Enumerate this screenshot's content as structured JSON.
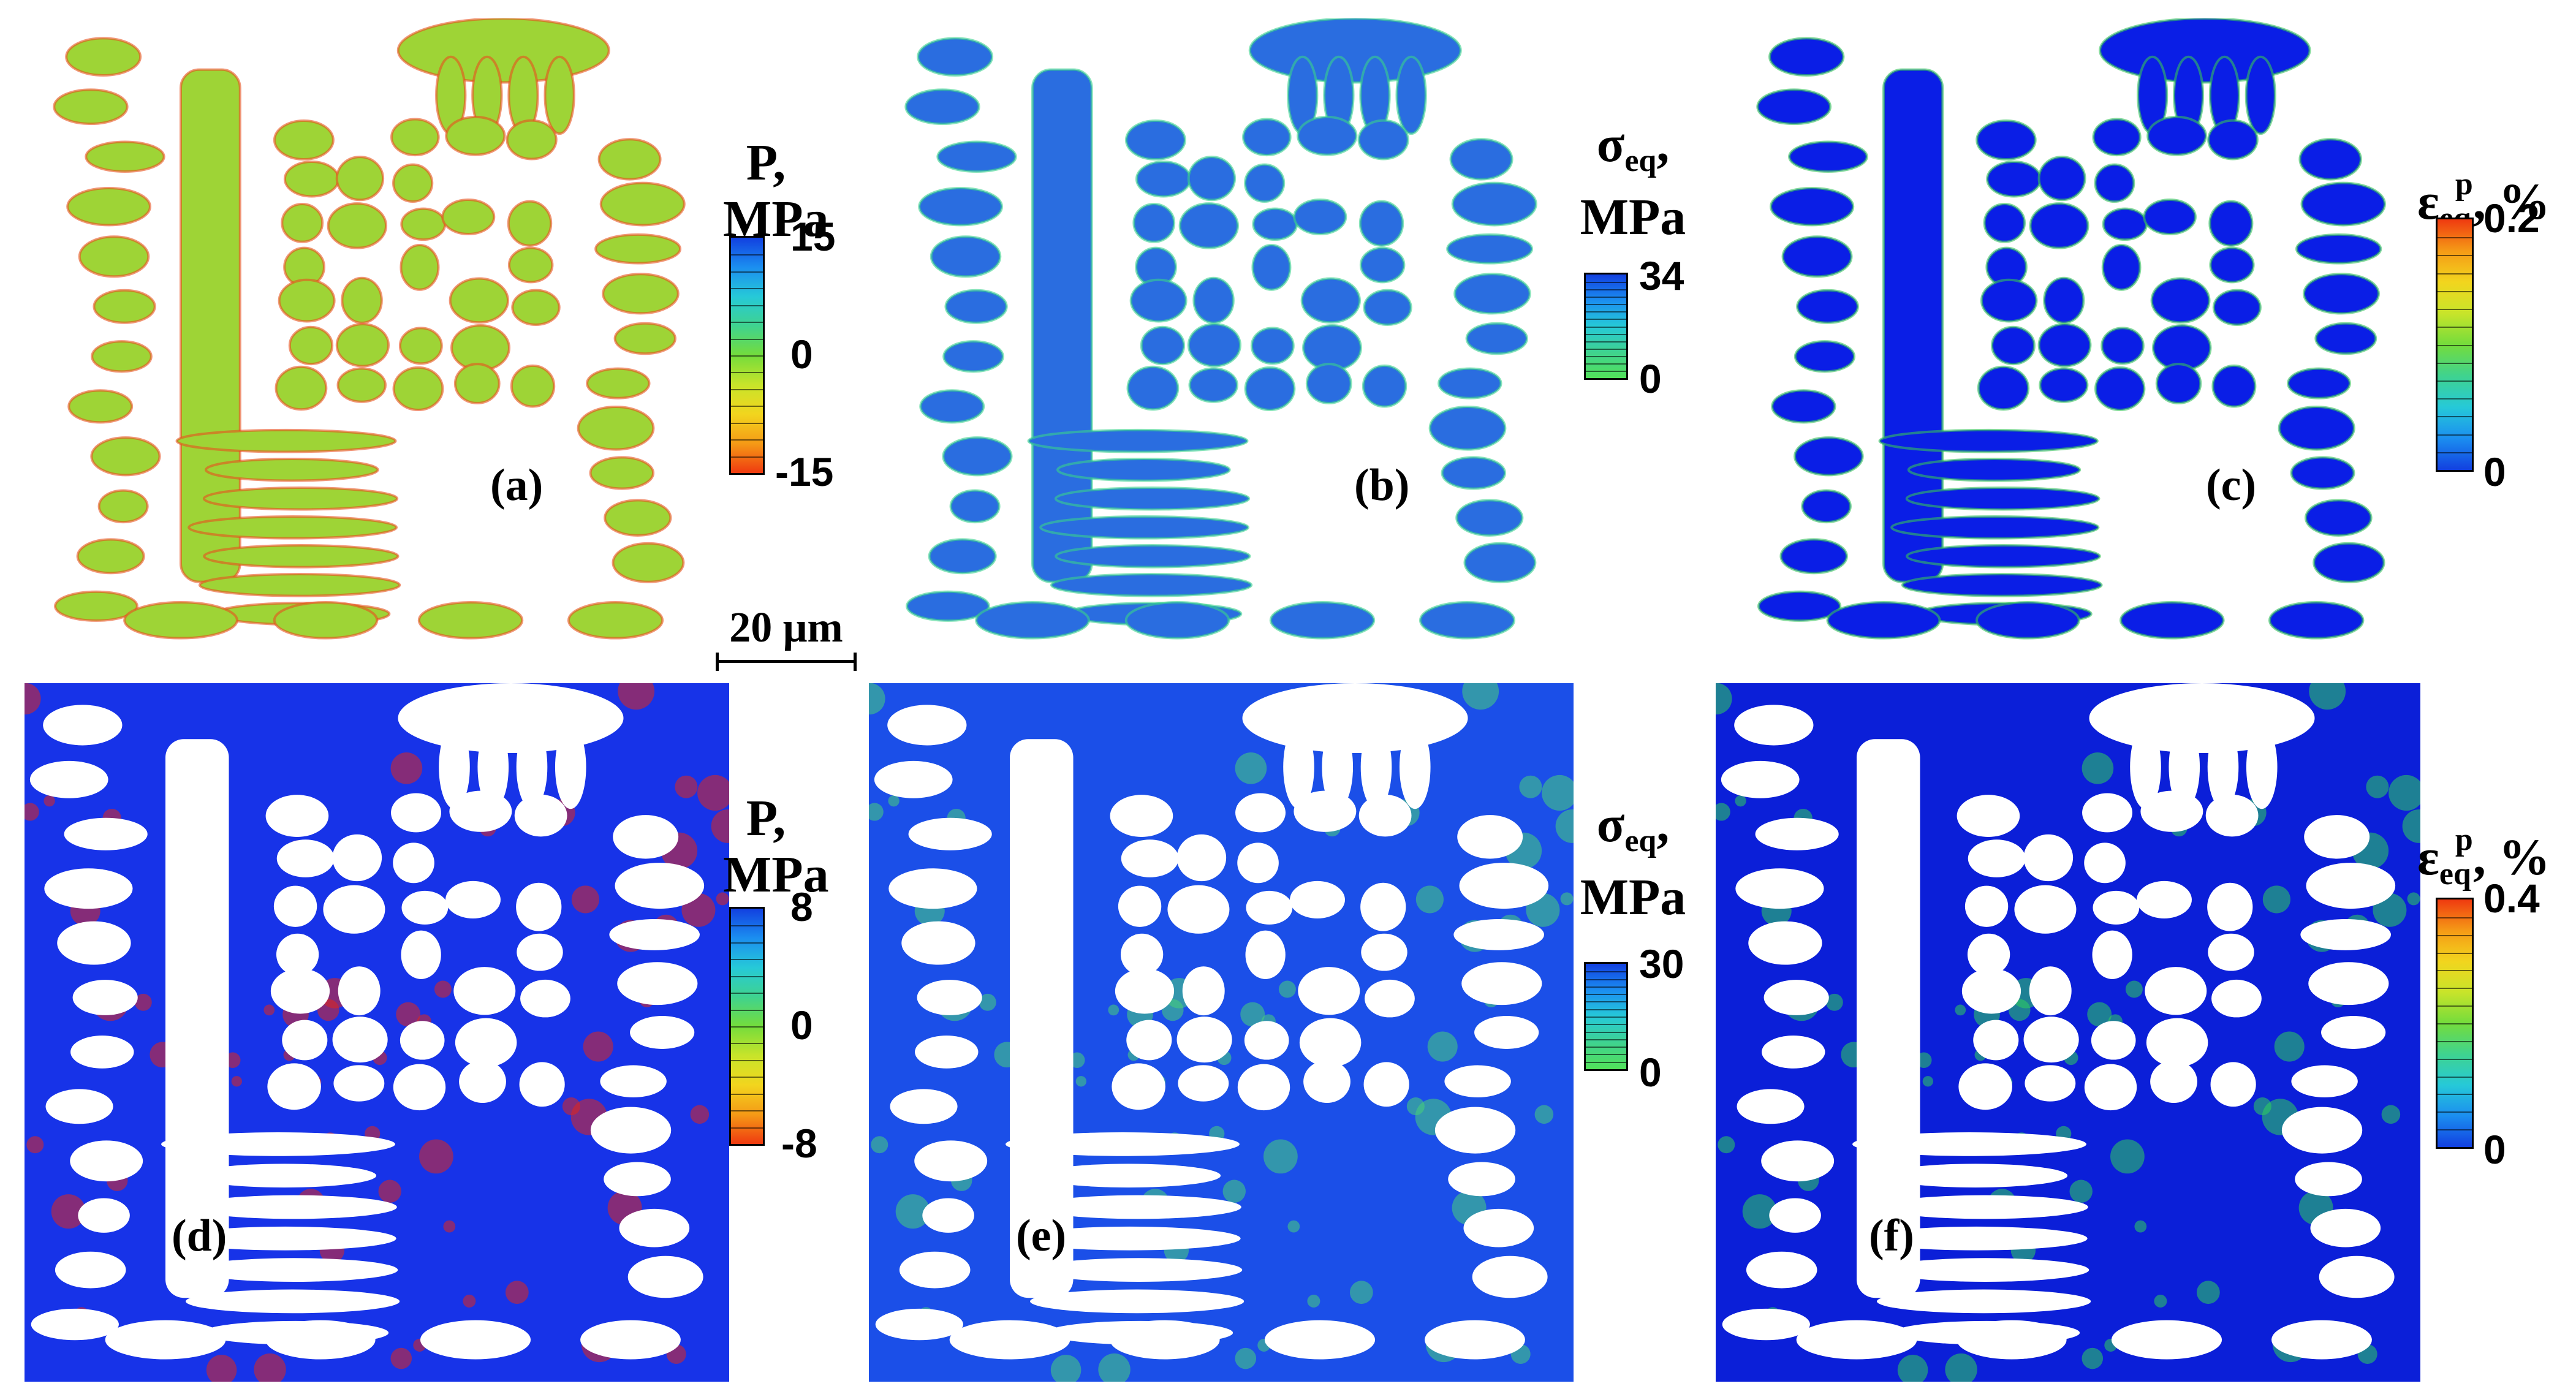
{
  "panels": [
    {
      "id": "a",
      "label": "(a)",
      "background": "#ffffff",
      "grain_fill": "#9ed436",
      "highlight": "#e8501e"
    },
    {
      "id": "b",
      "label": "(b)",
      "background": "#ffffff",
      "grain_fill": "#2a6de0",
      "highlight": "#39d28c"
    },
    {
      "id": "c",
      "label": "(c)",
      "background": "#ffffff",
      "grain_fill": "#0a1ee6",
      "highlight": "#34c25a"
    },
    {
      "id": "d",
      "label": "(d)",
      "background": "#1733e8",
      "grain_fill": "#ffffff",
      "highlight": "#e0261b"
    },
    {
      "id": "e",
      "label": "(e)",
      "background": "#1b4fe8",
      "grain_fill": "#ffffff",
      "highlight": "#47d27a"
    },
    {
      "id": "f",
      "label": "(f)",
      "background": "#0b1fd8",
      "grain_fill": "#ffffff",
      "highlight": "#2fd05c"
    }
  ],
  "colorbars": [
    {
      "id": "cb-a",
      "symbol": "P,",
      "unit": "MPa",
      "max": "15",
      "mid": "0",
      "min": "-15",
      "colors": [
        "#1240e0",
        "#1b8ef0",
        "#26c9d8",
        "#3fd38f",
        "#74dc3c",
        "#c8e42a",
        "#f2d51e",
        "#f59a16",
        "#ef3a10"
      ]
    },
    {
      "id": "cb-b",
      "symbol": "σ",
      "subscript": "eq",
      "suffix": ",",
      "unit": "MPa",
      "max": "34",
      "min": "0",
      "colors": [
        "#1240e0",
        "#1b8ef0",
        "#26c9d8",
        "#3fd38f",
        "#52e05a"
      ]
    },
    {
      "id": "cb-c",
      "symbol": "ε",
      "subscript": "eq",
      "superscript": "p",
      "suffix": ", %",
      "max": "0.2",
      "min": "0",
      "colors": [
        "#ef3a10",
        "#f59a16",
        "#f2d51e",
        "#c8e42a",
        "#74dc3c",
        "#3fd38f",
        "#26c9d8",
        "#1b8ef0",
        "#1240e0"
      ]
    },
    {
      "id": "cb-d",
      "symbol": "P,",
      "unit": "MPa",
      "max": "8",
      "mid": "0",
      "min": "-8",
      "colors": [
        "#1240e0",
        "#1b8ef0",
        "#26c9d8",
        "#3fd38f",
        "#74dc3c",
        "#c8e42a",
        "#f2d51e",
        "#f59a16",
        "#ef3a10"
      ]
    },
    {
      "id": "cb-e",
      "symbol": "σ",
      "subscript": "eq",
      "suffix": ",",
      "unit": "MPa",
      "max": "30",
      "min": "0",
      "colors": [
        "#1240e0",
        "#1b8ef0",
        "#26c9d8",
        "#3fd38f",
        "#52e05a"
      ]
    },
    {
      "id": "cb-f",
      "symbol": "ε",
      "subscript": "eq",
      "superscript": "p",
      "suffix": ", %",
      "max": "0.4",
      "min": "0",
      "colors": [
        "#ef3a10",
        "#f59a16",
        "#f2d51e",
        "#c8e42a",
        "#74dc3c",
        "#3fd38f",
        "#26c9d8",
        "#1b8ef0",
        "#1240e0"
      ]
    }
  ],
  "scalebar": {
    "label": "20 μm"
  }
}
